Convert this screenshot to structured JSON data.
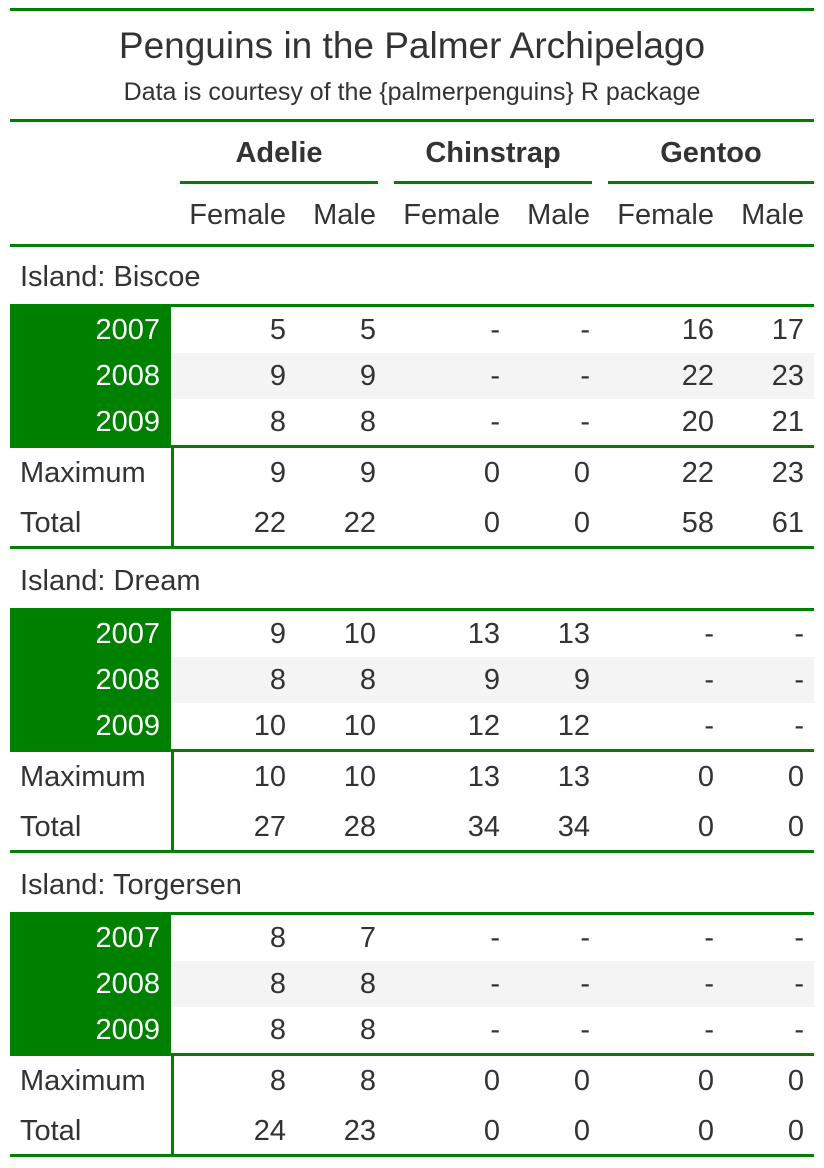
{
  "title": "Penguins in the Palmer Archipelago",
  "subtitle": "Data is courtesy of the {palmerpenguins} R package",
  "species": [
    "Adelie",
    "Chinstrap",
    "Gentoo"
  ],
  "sexes": [
    "Female",
    "Male"
  ],
  "colors": {
    "accent": "#008000",
    "stripe": "#f4f4f4",
    "text": "#333333"
  },
  "groups": [
    {
      "label": "Island: Biscoe",
      "rows": [
        {
          "year": "2007",
          "values": [
            "5",
            "5",
            "-",
            "-",
            "16",
            "17"
          ]
        },
        {
          "year": "2008",
          "values": [
            "9",
            "9",
            "-",
            "-",
            "22",
            "23"
          ]
        },
        {
          "year": "2009",
          "values": [
            "8",
            "8",
            "-",
            "-",
            "20",
            "21"
          ]
        }
      ],
      "summary": [
        {
          "label": "Maximum",
          "values": [
            "9",
            "9",
            "0",
            "0",
            "22",
            "23"
          ]
        },
        {
          "label": "Total",
          "values": [
            "22",
            "22",
            "0",
            "0",
            "58",
            "61"
          ]
        }
      ]
    },
    {
      "label": "Island: Dream",
      "rows": [
        {
          "year": "2007",
          "values": [
            "9",
            "10",
            "13",
            "13",
            "-",
            "-"
          ]
        },
        {
          "year": "2008",
          "values": [
            "8",
            "8",
            "9",
            "9",
            "-",
            "-"
          ]
        },
        {
          "year": "2009",
          "values": [
            "10",
            "10",
            "12",
            "12",
            "-",
            "-"
          ]
        }
      ],
      "summary": [
        {
          "label": "Maximum",
          "values": [
            "10",
            "10",
            "13",
            "13",
            "0",
            "0"
          ]
        },
        {
          "label": "Total",
          "values": [
            "27",
            "28",
            "34",
            "34",
            "0",
            "0"
          ]
        }
      ]
    },
    {
      "label": "Island: Torgersen",
      "rows": [
        {
          "year": "2007",
          "values": [
            "8",
            "7",
            "-",
            "-",
            "-",
            "-"
          ]
        },
        {
          "year": "2008",
          "values": [
            "8",
            "8",
            "-",
            "-",
            "-",
            "-"
          ]
        },
        {
          "year": "2009",
          "values": [
            "8",
            "8",
            "-",
            "-",
            "-",
            "-"
          ]
        }
      ],
      "summary": [
        {
          "label": "Maximum",
          "values": [
            "8",
            "8",
            "0",
            "0",
            "0",
            "0"
          ]
        },
        {
          "label": "Total",
          "values": [
            "24",
            "23",
            "0",
            "0",
            "0",
            "0"
          ]
        }
      ]
    }
  ]
}
